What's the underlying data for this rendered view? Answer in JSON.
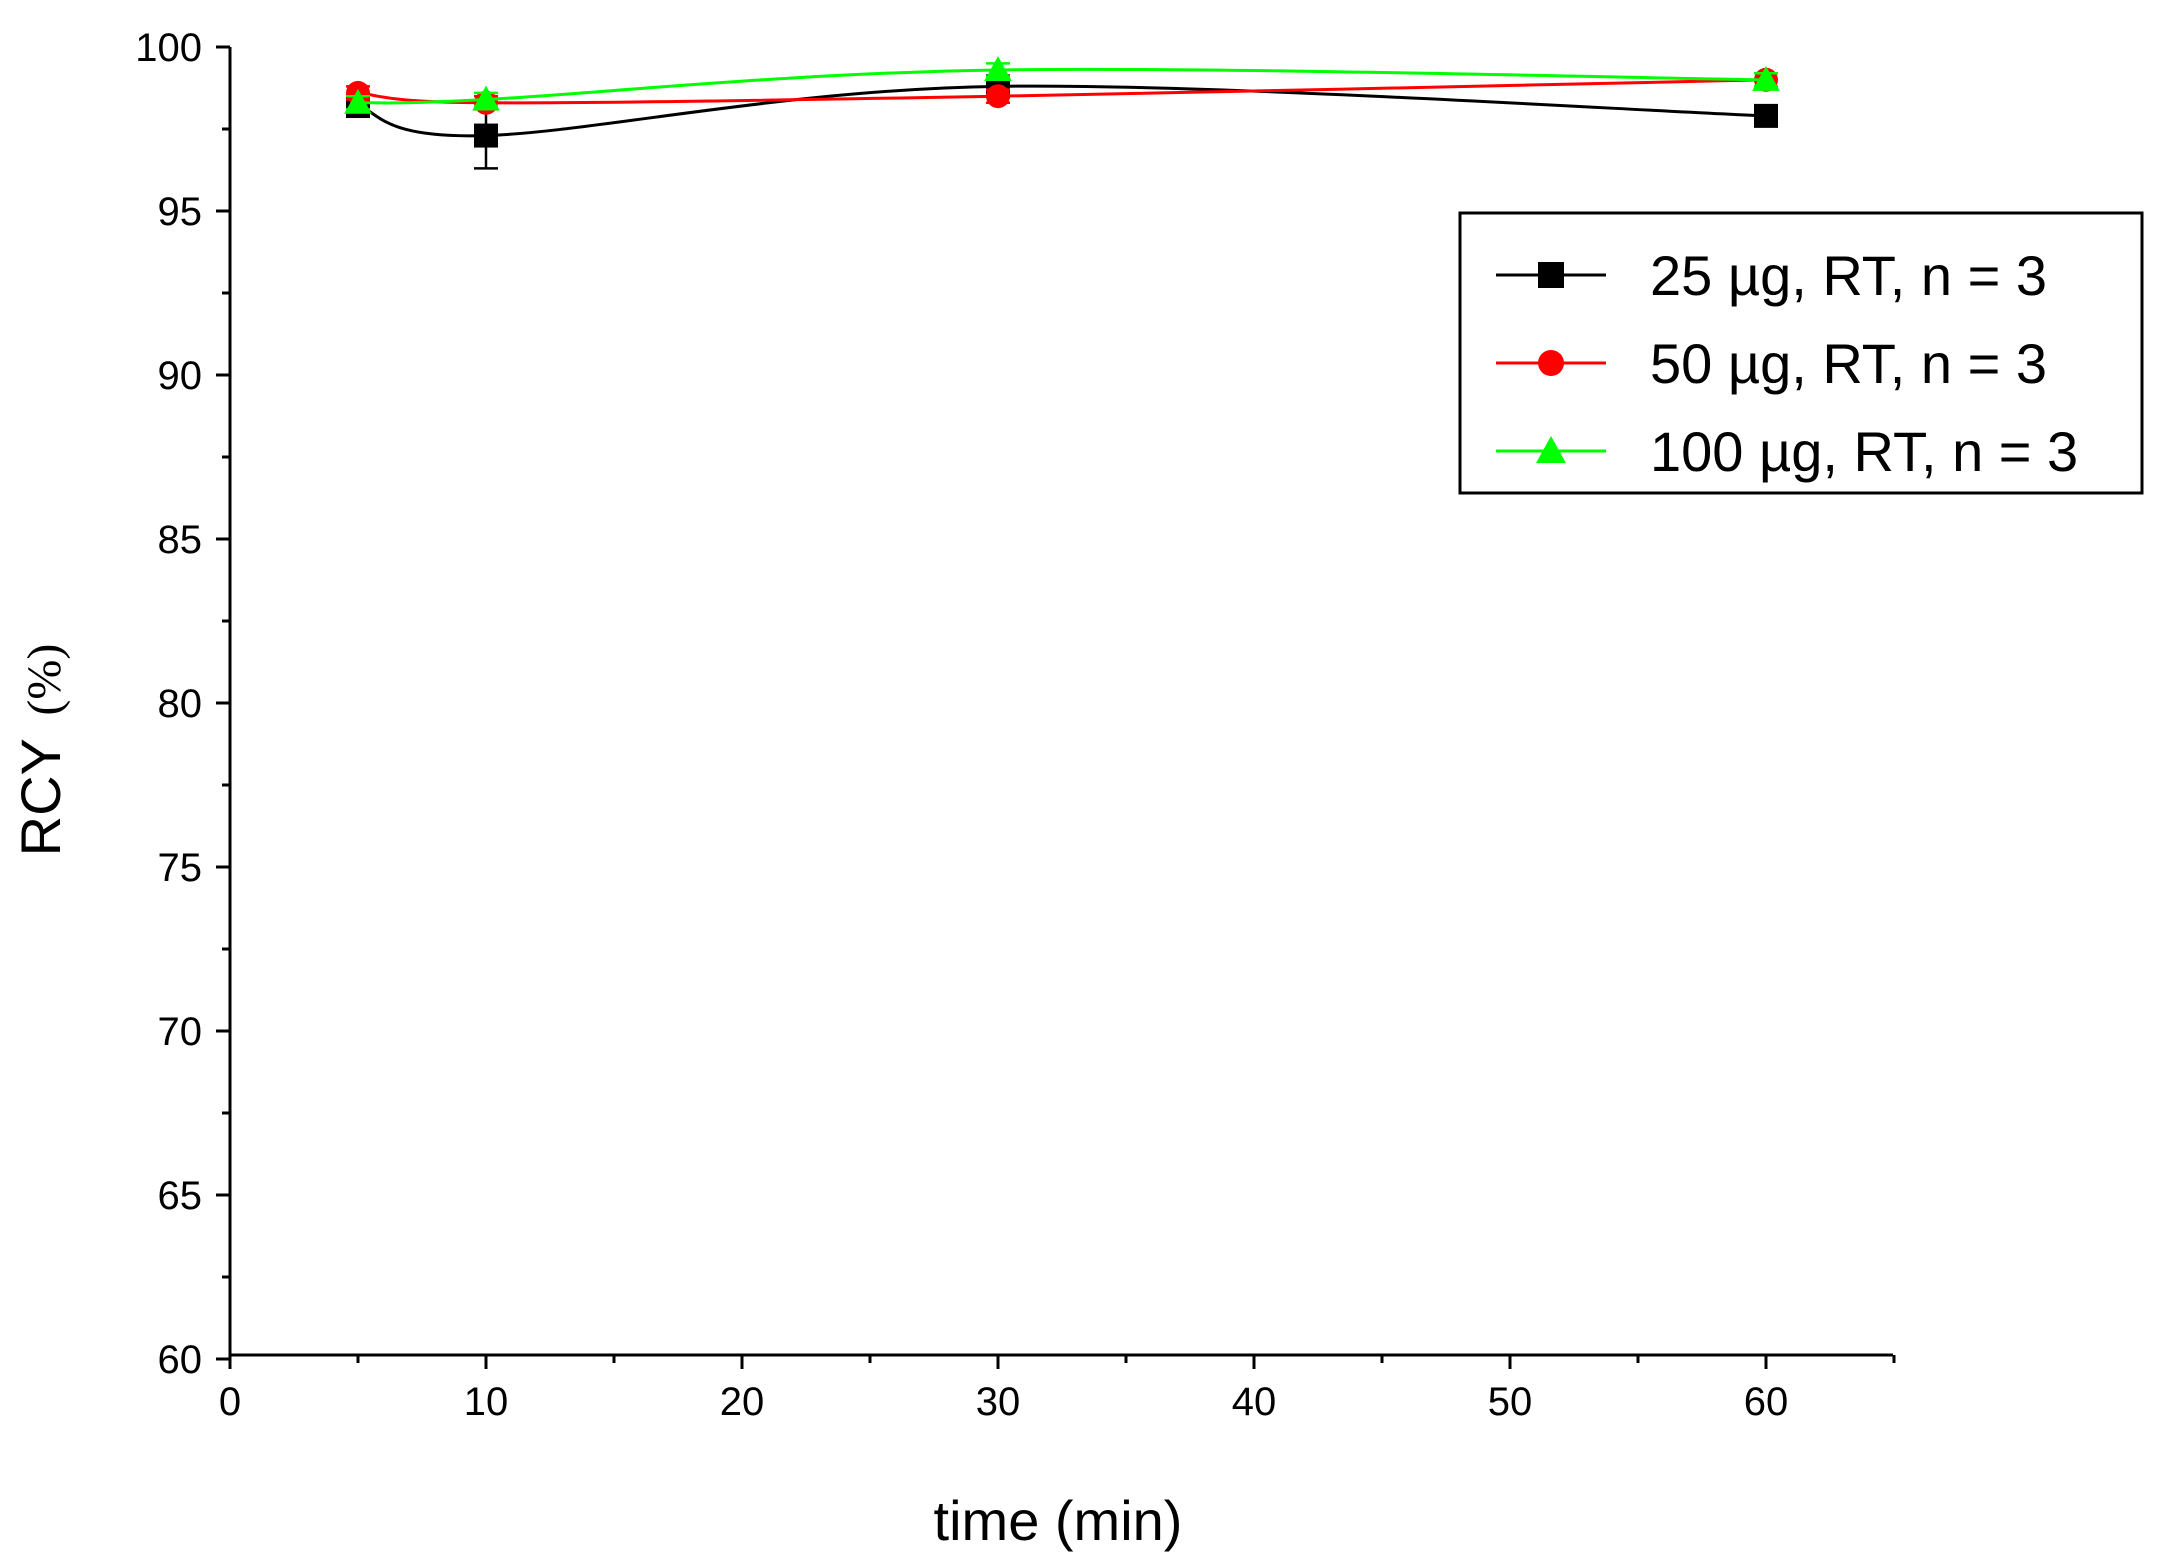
{
  "chart_data": {
    "type": "line",
    "xlabel": "time (min)",
    "ylabel_main": "RCY",
    "ylabel_unit": "(%)",
    "xlim": [
      0,
      65
    ],
    "ylim": [
      60,
      100
    ],
    "x_ticks": [
      0,
      10,
      20,
      30,
      40,
      50,
      60
    ],
    "x_minor_ticks": [
      5,
      15,
      25,
      35,
      45,
      55,
      65
    ],
    "y_ticks": [
      60,
      65,
      70,
      75,
      80,
      85,
      90,
      95,
      100
    ],
    "y_minor_ticks": [
      62.5,
      67.5,
      72.5,
      77.5,
      82.5,
      87.5,
      92.5,
      97.5
    ],
    "grid": false,
    "legend_position": "top-right",
    "series": [
      {
        "name": "25 µg, RT, n = 3",
        "color": "#000000",
        "marker": "square",
        "x": [
          5,
          10,
          30,
          60
        ],
        "y": [
          98.2,
          97.3,
          98.8,
          97.9
        ],
        "err": [
          0.3,
          1.0,
          0.3,
          0.2
        ]
      },
      {
        "name": "50 µg, RT, n = 3",
        "color": "#ff0000",
        "marker": "circle",
        "x": [
          5,
          10,
          30,
          60
        ],
        "y": [
          98.6,
          98.3,
          98.5,
          99.0
        ],
        "err": [
          0.2,
          0.2,
          0.2,
          0.2
        ]
      },
      {
        "name": "100 µg, RT, n = 3",
        "color": "#00ff00",
        "marker": "triangle",
        "x": [
          5,
          10,
          30,
          60
        ],
        "y": [
          98.3,
          98.4,
          99.3,
          99.0
        ],
        "err": [
          0.2,
          0.2,
          0.2,
          0.2
        ]
      }
    ]
  }
}
